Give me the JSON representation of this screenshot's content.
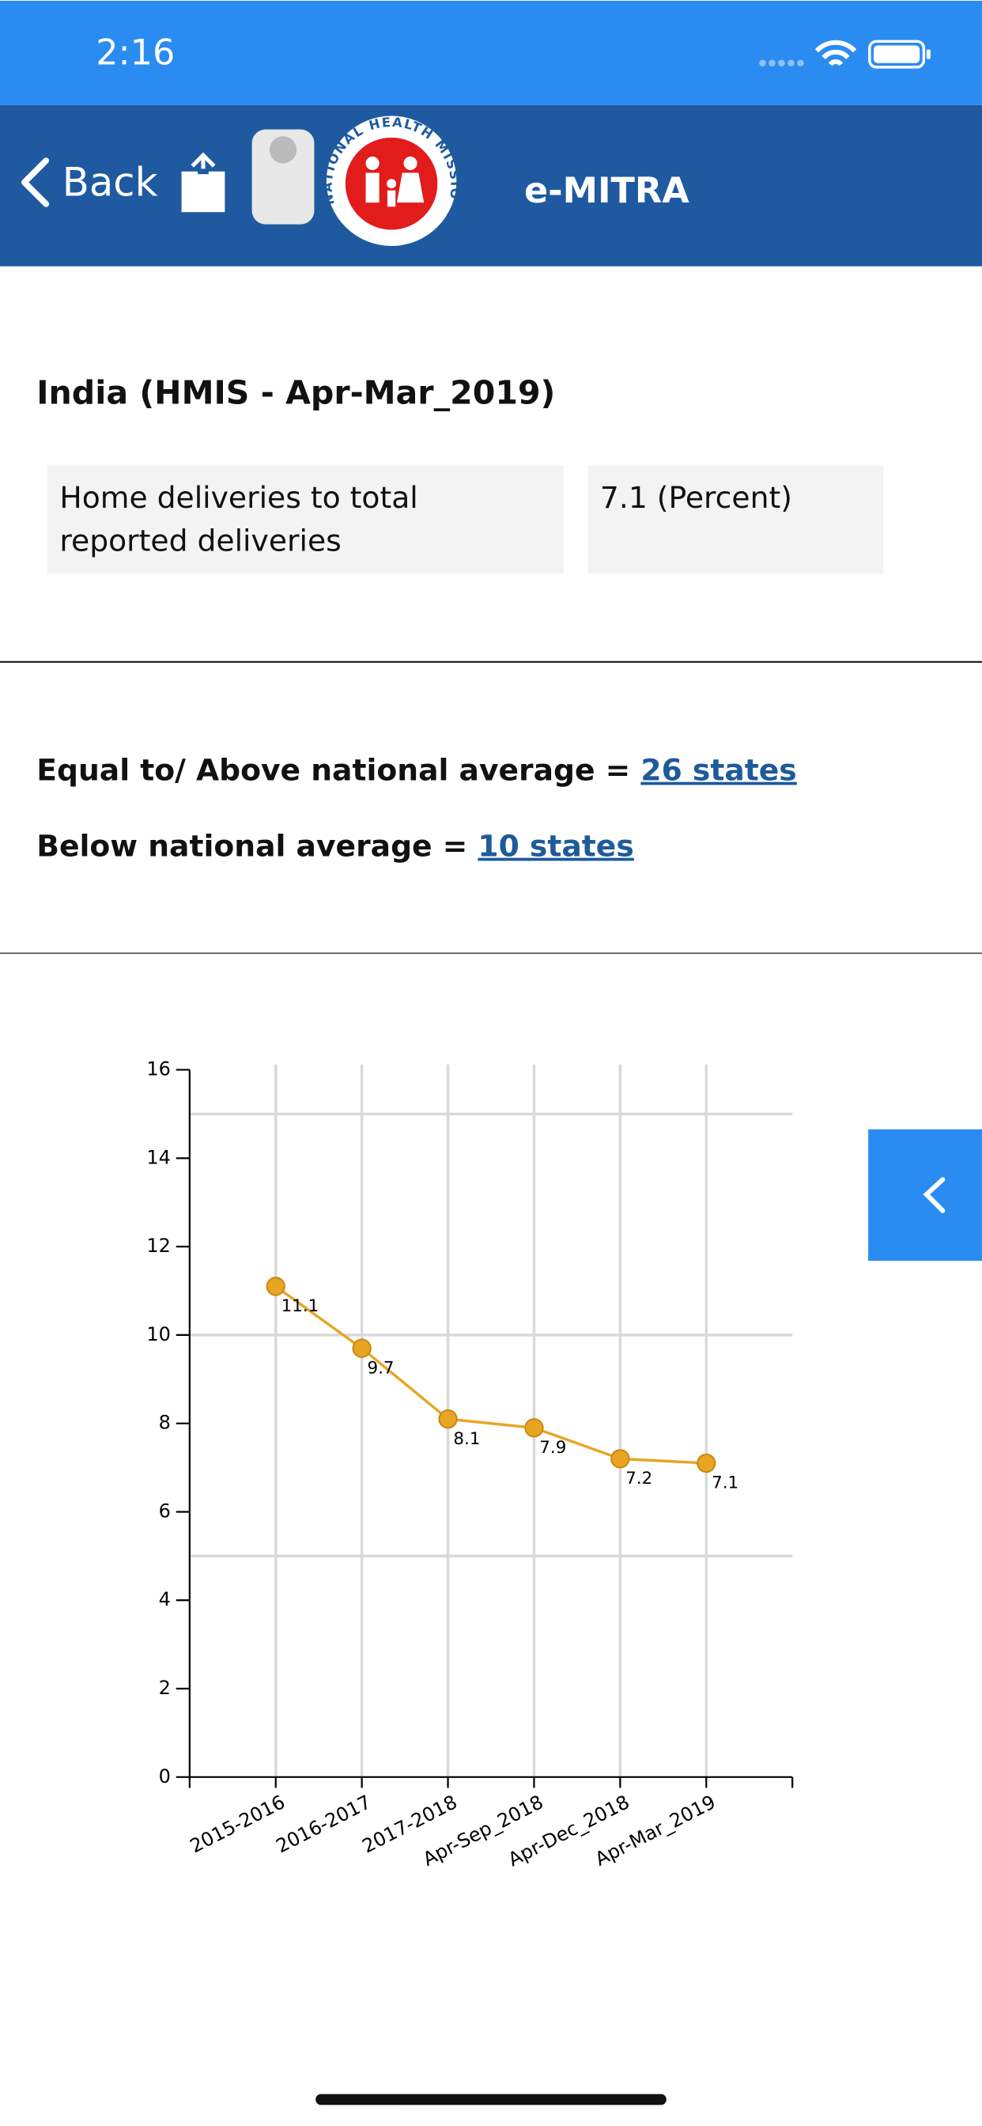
{
  "status_bar": {
    "time": "2:16"
  },
  "nav": {
    "back": "Back",
    "title": "e-MITRA",
    "logo_text": "NATIONAL HEALTH MISSION"
  },
  "heading": "India (HMIS - Apr-Mar_2019)",
  "table": {
    "rows": [
      [
        "Home deliveries to total",
        "reported deliveries",
        "7.1 (Percent)"
      ]
    ]
  },
  "summary": {
    "above_label": "Equal to/ Above national average = ",
    "above_link": "26 states",
    "below_label": "Below national average = ",
    "below_link": "10 states"
  },
  "chart_data": {
    "type": "line",
    "categories": [
      "2015-2016",
      "2016-2017",
      "2017-2018",
      "Apr-Sep_2018",
      "Apr-Dec_2018",
      "Apr-Mar_2019"
    ],
    "values": [
      11.1,
      9.7,
      8.1,
      7.9,
      7.2,
      7.1
    ],
    "color": "#e8a524",
    "ylim": [
      0,
      16
    ],
    "yticks": [
      0,
      2,
      4,
      6,
      8,
      10,
      12,
      14,
      16
    ],
    "grid_lines": [
      5,
      10,
      15
    ],
    "grid": true
  }
}
